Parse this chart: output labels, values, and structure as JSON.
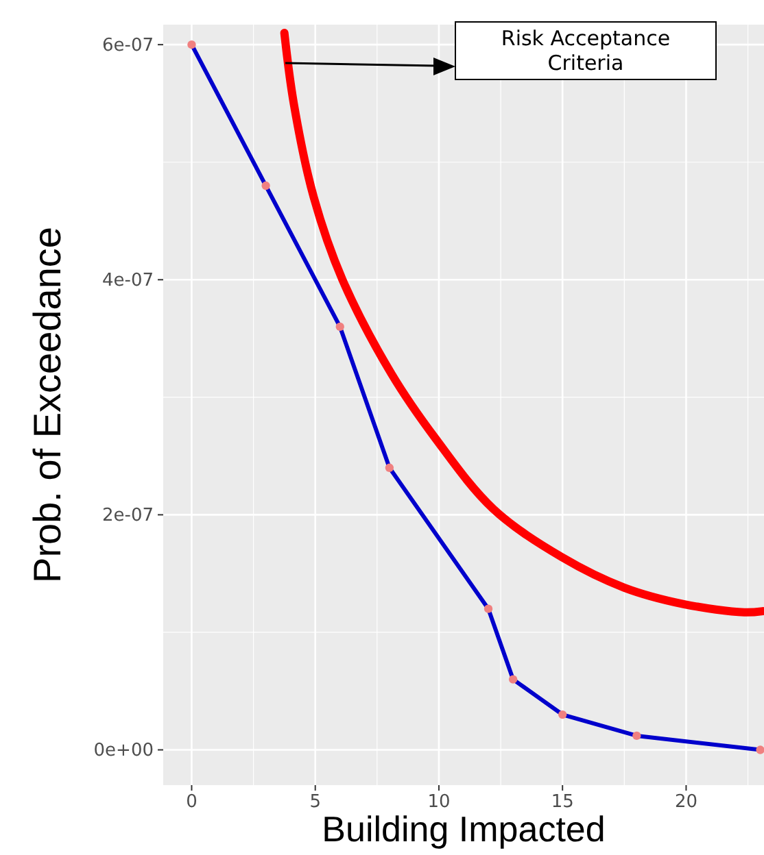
{
  "chart_data": {
    "type": "line",
    "xlabel": "Building Impacted",
    "ylabel": "Prob. of Exceedance",
    "xlim": [
      -1.15,
      23.15
    ],
    "ylim": [
      -3e-08,
      6.17e-07
    ],
    "xticks": [
      0,
      5,
      10,
      15,
      20
    ],
    "yticks": [
      {
        "value": 0,
        "label": "0e+00"
      },
      {
        "value": 2e-07,
        "label": "2e-07"
      },
      {
        "value": 4e-07,
        "label": "4e-07"
      },
      {
        "value": 6e-07,
        "label": "6e-07"
      }
    ],
    "grid": true,
    "series": [
      {
        "color": "#0000cc",
        "marker": "circle",
        "x": [
          0,
          3,
          6,
          8,
          12,
          13,
          15,
          18,
          23
        ],
        "values": [
          6e-07,
          4.8e-07,
          3.6e-07,
          2.4e-07,
          1.2e-07,
          6e-08,
          3e-08,
          1.2e-08,
          0
        ]
      },
      {
        "color": "#ff0000",
        "marker": "none",
        "x": [
          3.75,
          4.13,
          4.94,
          6.1,
          8.08,
          9.86,
          12.2,
          14.97,
          17.5,
          19.9,
          22.35,
          23.1
        ],
        "values": [
          6.1e-07,
          5.5e-07,
          4.7e-07,
          4e-07,
          3.2e-07,
          2.65e-07,
          2.05e-07,
          1.64e-07,
          1.38e-07,
          1.24e-07,
          1.17e-07,
          1.18e-07
        ]
      }
    ],
    "annotations": [
      "Risk Acceptance Criteria"
    ]
  }
}
